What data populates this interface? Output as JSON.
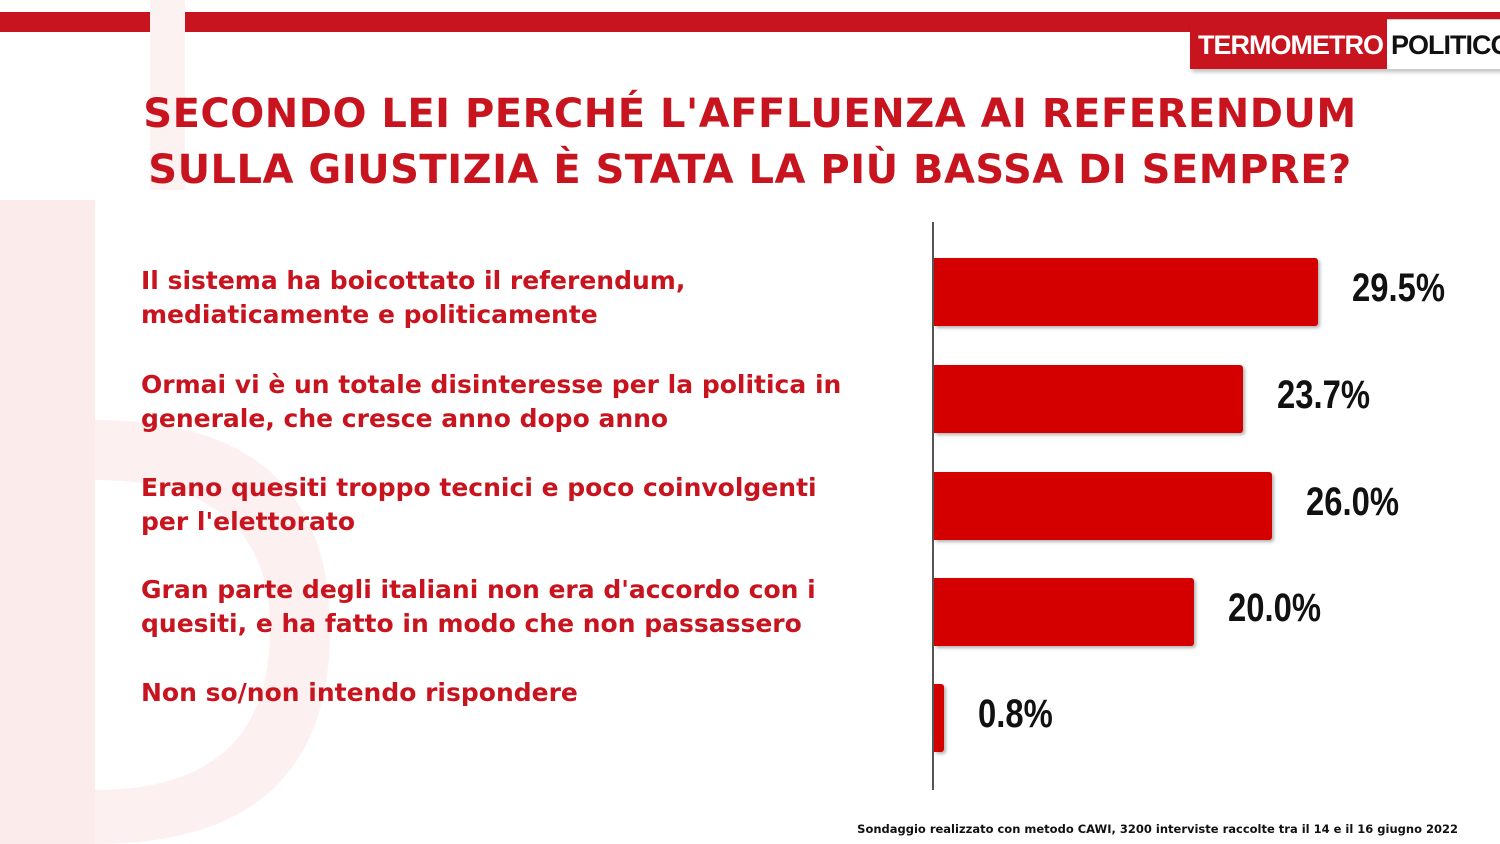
{
  "logo": {
    "part1": "TERMOMETRO",
    "part2": "POLITICO"
  },
  "title": {
    "line1": "SECONDO LEI PERCHÉ L'AFFLUENZA AI REFERENDUM",
    "line2": "SULLA GIUSTIZIA È STATA LA PIÙ BASSA DI SEMPRE?"
  },
  "colors": {
    "accent": "#c8141e",
    "bar": "#d40000"
  },
  "chart_data": {
    "type": "bar",
    "orientation": "horizontal",
    "categories": [
      [
        "Il sistema ha boicottato il referendum,",
        "mediaticamente e politicamente"
      ],
      [
        "Ormai vi è un totale disinteresse per la politica in",
        "generale, che cresce anno dopo anno"
      ],
      [
        "Erano quesiti troppo tecnici e poco coinvolgenti",
        "per l'elettorato"
      ],
      [
        "Gran parte degli italiani non era d'accordo con i",
        "quesiti, e ha fatto in modo che non passassero"
      ],
      [
        "Non so/non intendo rispondere"
      ]
    ],
    "values": [
      29.5,
      23.7,
      26.0,
      20.0,
      0.8
    ],
    "labels": [
      "29.5%",
      "23.7%",
      "26.0%",
      "20.0%",
      "0.8%"
    ],
    "xlim": [
      0,
      33
    ],
    "grid": false,
    "legend": "none"
  },
  "footnote": "Sondaggio realizzato con metodo CAWI, 3200 interviste raccolte tra il 14 e il 16 giugno 2022"
}
